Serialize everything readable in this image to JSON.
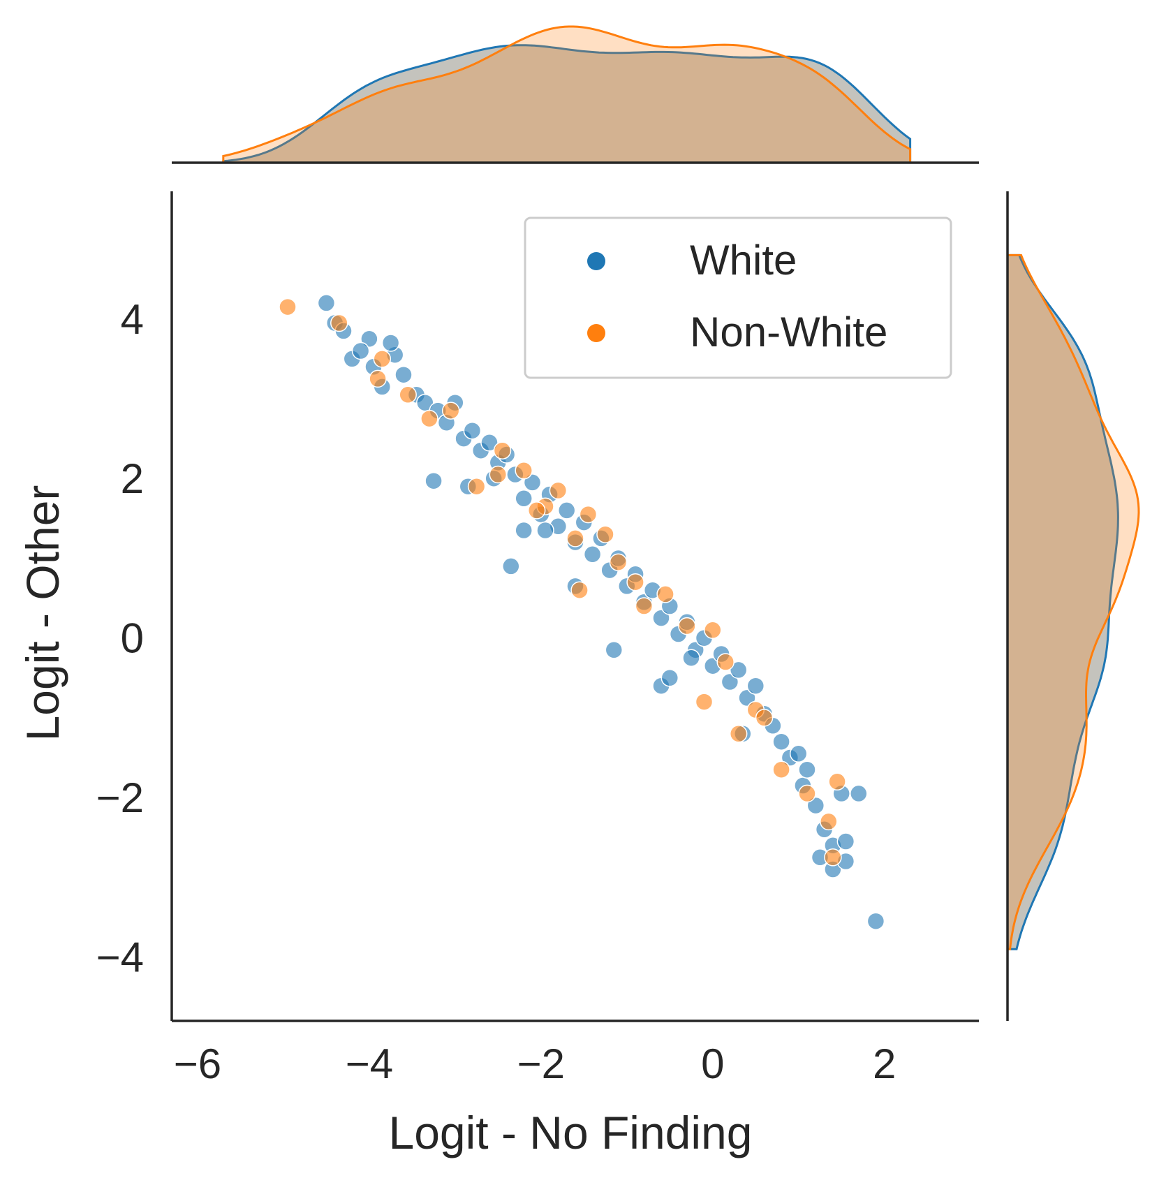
{
  "chart_data": {
    "type": "scatter",
    "xlabel": "Logit - No Finding",
    "ylabel": "Logit - Other",
    "xlim": [
      -6.3,
      3.1
    ],
    "ylim": [
      -4.8,
      5.6
    ],
    "xticks": [
      -6,
      -4,
      -2,
      0,
      2
    ],
    "yticks": [
      -4,
      -2,
      0,
      2,
      4
    ],
    "xtick_labels": [
      "−6",
      "−4",
      "−2",
      "0",
      "2"
    ],
    "ytick_labels": [
      "−4",
      "−2",
      "0",
      "2",
      "4"
    ],
    "grid": false,
    "legend": {
      "placement": "top-right",
      "entries": [
        "White",
        "Non-White"
      ]
    },
    "marginals": {
      "top": "kde of x per series",
      "right": "kde of y per series"
    },
    "colors": {
      "White": "#1f77b4",
      "Non-White": "#ff7f0e",
      "overlap_fill": "#c4c3bd",
      "axis": "#262626"
    },
    "series": [
      {
        "name": "White",
        "points": [
          [
            -4.5,
            4.2
          ],
          [
            -4.4,
            3.95
          ],
          [
            -4.3,
            3.85
          ],
          [
            -4.2,
            3.5
          ],
          [
            -4.0,
            3.75
          ],
          [
            -3.95,
            3.4
          ],
          [
            -3.85,
            3.15
          ],
          [
            -3.7,
            3.55
          ],
          [
            -3.6,
            3.3
          ],
          [
            -3.45,
            3.05
          ],
          [
            -3.35,
            2.95
          ],
          [
            -3.2,
            2.85
          ],
          [
            -3.1,
            2.7
          ],
          [
            -3.0,
            2.95
          ],
          [
            -2.9,
            2.5
          ],
          [
            -2.8,
            2.6
          ],
          [
            -2.7,
            2.35
          ],
          [
            -2.6,
            2.45
          ],
          [
            -2.5,
            2.2
          ],
          [
            -2.4,
            2.3
          ],
          [
            -2.3,
            2.05
          ],
          [
            -2.2,
            1.75
          ],
          [
            -2.1,
            1.95
          ],
          [
            -2.0,
            1.55
          ],
          [
            -1.9,
            1.8
          ],
          [
            -1.8,
            1.4
          ],
          [
            -1.7,
            1.6
          ],
          [
            -1.6,
            1.2
          ],
          [
            -1.5,
            1.45
          ],
          [
            -1.4,
            1.05
          ],
          [
            -1.3,
            1.25
          ],
          [
            -1.2,
            0.85
          ],
          [
            -1.1,
            1.0
          ],
          [
            -1.0,
            0.65
          ],
          [
            -0.9,
            0.8
          ],
          [
            -0.8,
            0.45
          ],
          [
            -0.7,
            0.6
          ],
          [
            -0.6,
            0.25
          ],
          [
            -0.5,
            0.4
          ],
          [
            -0.4,
            0.05
          ],
          [
            -0.3,
            0.2
          ],
          [
            -0.2,
            -0.15
          ],
          [
            -0.1,
            0.0
          ],
          [
            0.0,
            -0.35
          ],
          [
            0.1,
            -0.2
          ],
          [
            0.2,
            -0.55
          ],
          [
            0.3,
            -0.4
          ],
          [
            0.4,
            -0.75
          ],
          [
            0.5,
            -0.6
          ],
          [
            0.6,
            -0.95
          ],
          [
            0.7,
            -1.1
          ],
          [
            0.8,
            -1.3
          ],
          [
            0.9,
            -1.5
          ],
          [
            1.0,
            -1.45
          ],
          [
            1.05,
            -1.85
          ],
          [
            1.1,
            -1.65
          ],
          [
            1.2,
            -2.1
          ],
          [
            1.3,
            -2.4
          ],
          [
            1.4,
            -2.6
          ],
          [
            1.25,
            -2.75
          ],
          [
            1.4,
            -2.9
          ],
          [
            1.55,
            -2.55
          ],
          [
            1.55,
            -2.8
          ],
          [
            1.5,
            -1.95
          ],
          [
            1.7,
            -1.95
          ],
          [
            1.9,
            -3.55
          ],
          [
            -3.25,
            1.97
          ],
          [
            -2.35,
            0.9
          ],
          [
            -1.15,
            -0.15
          ],
          [
            -0.6,
            -0.6
          ],
          [
            -2.85,
            1.9
          ],
          [
            -1.6,
            0.65
          ],
          [
            -2.2,
            1.35
          ],
          [
            -0.5,
            -0.5
          ],
          [
            -3.75,
            3.7
          ],
          [
            -4.1,
            3.6
          ],
          [
            -2.55,
            2.0
          ],
          [
            -1.95,
            1.35
          ],
          [
            -0.25,
            -0.25
          ],
          [
            0.35,
            -1.2
          ]
        ]
      },
      {
        "name": "Non-White",
        "points": [
          [
            -4.95,
            4.15
          ],
          [
            -4.35,
            3.95
          ],
          [
            -3.9,
            3.25
          ],
          [
            -3.85,
            3.5
          ],
          [
            -3.55,
            3.05
          ],
          [
            -3.3,
            2.75
          ],
          [
            -2.75,
            1.9
          ],
          [
            -2.5,
            2.05
          ],
          [
            -2.45,
            2.35
          ],
          [
            -2.2,
            2.1
          ],
          [
            -1.95,
            1.65
          ],
          [
            -1.8,
            1.85
          ],
          [
            -1.6,
            1.25
          ],
          [
            -1.45,
            1.55
          ],
          [
            -1.25,
            1.3
          ],
          [
            -1.55,
            0.6
          ],
          [
            -1.1,
            0.95
          ],
          [
            -0.8,
            0.4
          ],
          [
            -0.55,
            0.55
          ],
          [
            -0.3,
            0.15
          ],
          [
            0.0,
            0.1
          ],
          [
            0.15,
            -0.3
          ],
          [
            -0.1,
            -0.8
          ],
          [
            0.3,
            -1.2
          ],
          [
            0.5,
            -0.9
          ],
          [
            0.8,
            -1.65
          ],
          [
            1.1,
            -1.95
          ],
          [
            1.35,
            -2.3
          ],
          [
            1.4,
            -2.75
          ],
          [
            1.45,
            -1.8
          ],
          [
            0.6,
            -1.0
          ],
          [
            -0.9,
            0.7
          ],
          [
            -2.05,
            1.6
          ],
          [
            -3.05,
            2.85
          ]
        ]
      }
    ]
  }
}
